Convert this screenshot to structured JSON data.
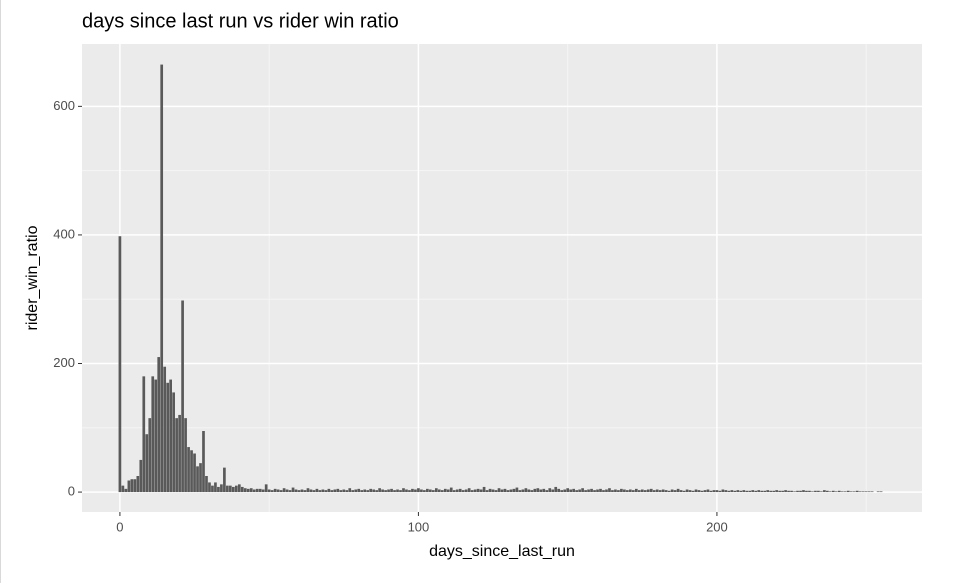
{
  "chart_data": {
    "type": "bar",
    "title": "days since last run vs rider win ratio",
    "x_label": "days_since_last_run",
    "y_label": "rider_win_ratio",
    "color": "#595959",
    "grid": true,
    "xlim": [
      -12.7,
      268.7
    ],
    "ylim": [
      -31,
      697
    ],
    "xticks": [
      0,
      100,
      200
    ],
    "yticks": [
      0,
      200,
      400,
      600
    ],
    "x_minor_ticks": [
      50,
      150,
      250
    ],
    "y_minor_ticks": [
      100,
      300,
      500
    ],
    "x": [
      0,
      1,
      2,
      3,
      4,
      5,
      6,
      7,
      8,
      9,
      10,
      11,
      12,
      13,
      14,
      15,
      16,
      17,
      18,
      19,
      20,
      21,
      22,
      23,
      24,
      25,
      26,
      27,
      28,
      29,
      30,
      31,
      32,
      33,
      34,
      35,
      36,
      37,
      38,
      39,
      40,
      41,
      42,
      43,
      44,
      45,
      46,
      47,
      48,
      49,
      50,
      51,
      52,
      53,
      54,
      55,
      56,
      57,
      58,
      59,
      60,
      61,
      62,
      63,
      64,
      65,
      66,
      67,
      68,
      69,
      70,
      71,
      72,
      73,
      74,
      75,
      76,
      77,
      78,
      79,
      80,
      81,
      82,
      83,
      84,
      85,
      86,
      87,
      88,
      89,
      90,
      91,
      92,
      93,
      94,
      95,
      96,
      97,
      98,
      99,
      100,
      101,
      102,
      103,
      104,
      105,
      106,
      107,
      108,
      109,
      110,
      111,
      112,
      113,
      114,
      115,
      116,
      117,
      118,
      119,
      120,
      121,
      122,
      123,
      124,
      125,
      126,
      127,
      128,
      129,
      130,
      131,
      132,
      133,
      134,
      135,
      136,
      137,
      138,
      139,
      140,
      141,
      142,
      143,
      144,
      145,
      146,
      147,
      148,
      149,
      150,
      151,
      152,
      153,
      154,
      155,
      156,
      157,
      158,
      159,
      160,
      161,
      162,
      163,
      164,
      165,
      166,
      167,
      168,
      169,
      170,
      171,
      172,
      173,
      174,
      175,
      176,
      177,
      178,
      179,
      180,
      181,
      182,
      183,
      184,
      185,
      186,
      187,
      188,
      189,
      190,
      191,
      192,
      193,
      194,
      195,
      196,
      197,
      198,
      199,
      200,
      201,
      202,
      203,
      204,
      205,
      206,
      207,
      208,
      209,
      210,
      211,
      212,
      213,
      214,
      215,
      216,
      217,
      218,
      219,
      220,
      221,
      222,
      223,
      224,
      225,
      226,
      227,
      228,
      229,
      230,
      231,
      232,
      233,
      234,
      235,
      236,
      237,
      238,
      239,
      240,
      241,
      242,
      243,
      244,
      245,
      246,
      247,
      248,
      249,
      250,
      251,
      252,
      253,
      254,
      255
    ],
    "values": [
      398,
      10,
      5,
      18,
      20,
      20,
      25,
      50,
      180,
      90,
      115,
      180,
      175,
      210,
      665,
      195,
      170,
      175,
      155,
      115,
      120,
      298,
      115,
      70,
      65,
      60,
      40,
      45,
      95,
      25,
      15,
      10,
      15,
      8,
      12,
      38,
      10,
      10,
      8,
      10,
      12,
      8,
      6,
      5,
      6,
      4,
      5,
      5,
      4,
      12,
      4,
      3,
      5,
      4,
      3,
      6,
      4,
      3,
      7,
      4,
      3,
      4,
      3,
      6,
      4,
      3,
      5,
      3,
      4,
      3,
      5,
      3,
      4,
      5,
      3,
      4,
      3,
      6,
      3,
      4,
      5,
      3,
      4,
      3,
      5,
      4,
      3,
      6,
      4,
      3,
      4,
      5,
      3,
      4,
      3,
      6,
      4,
      3,
      5,
      4,
      6,
      4,
      3,
      5,
      4,
      3,
      6,
      4,
      3,
      5,
      4,
      7,
      3,
      4,
      5,
      3,
      4,
      6,
      3,
      4,
      5,
      4,
      8,
      3,
      5,
      4,
      3,
      6,
      4,
      5,
      3,
      4,
      5,
      7,
      3,
      4,
      6,
      4,
      3,
      5,
      6,
      4,
      5,
      3,
      6,
      4,
      8,
      5,
      3,
      4,
      6,
      4,
      5,
      3,
      4,
      6,
      3,
      4,
      5,
      3,
      4,
      5,
      3,
      4,
      6,
      3,
      4,
      3,
      5,
      4,
      3,
      4,
      3,
      5,
      3,
      4,
      3,
      4,
      5,
      3,
      4,
      3,
      4,
      3,
      2,
      4,
      3,
      5,
      3,
      2,
      4,
      3,
      2,
      4,
      3,
      2,
      3,
      4,
      2,
      3,
      3,
      2,
      4,
      3,
      2,
      3,
      2,
      3,
      2,
      3,
      2,
      2,
      3,
      2,
      3,
      2,
      2,
      3,
      2,
      2,
      3,
      2,
      2,
      3,
      2,
      2,
      1,
      2,
      2,
      3,
      2,
      2,
      1,
      2,
      2,
      1,
      3,
      2,
      1,
      2,
      1,
      2,
      1,
      1,
      2,
      1,
      1,
      2,
      1,
      1,
      1,
      1,
      1,
      0,
      1,
      1
    ]
  }
}
